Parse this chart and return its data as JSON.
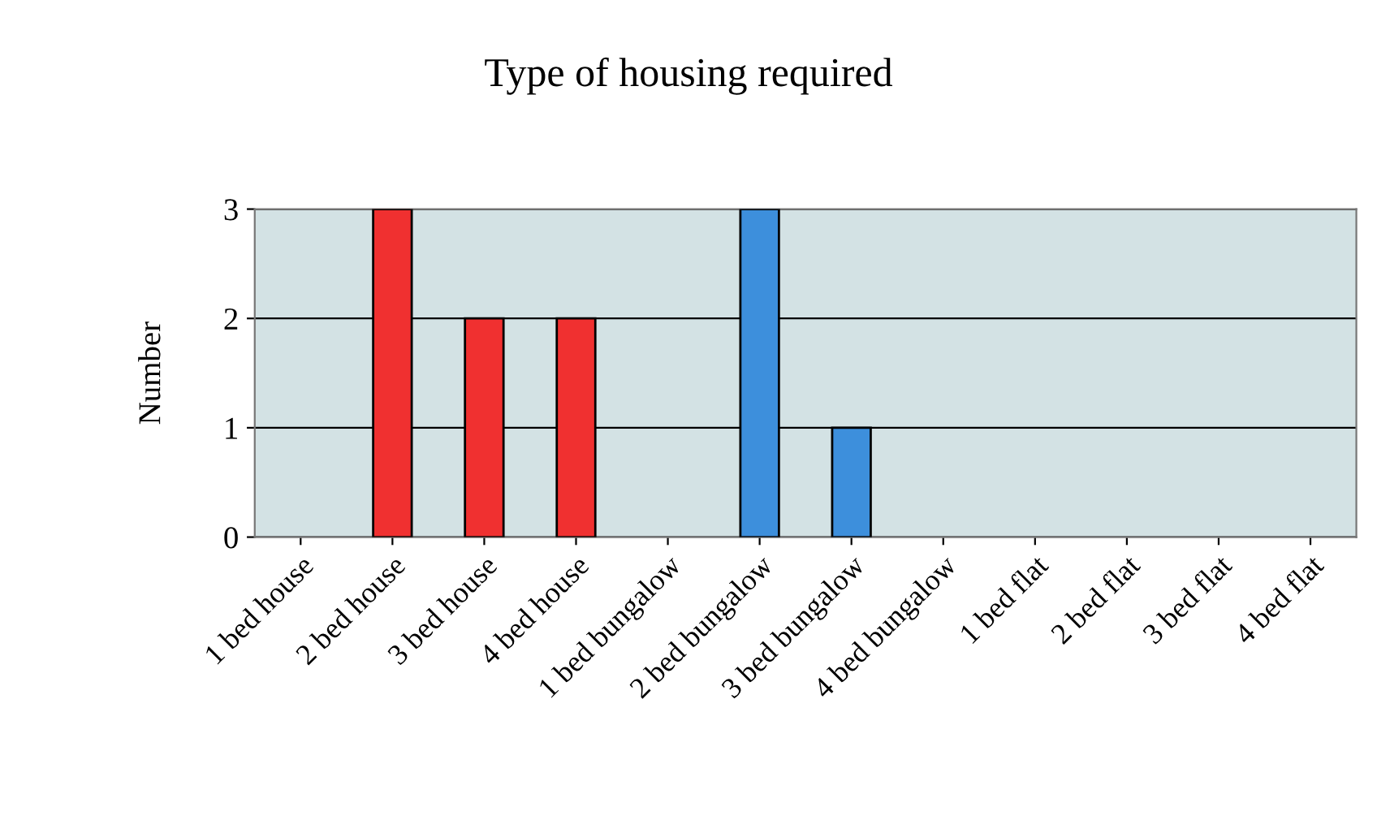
{
  "chart_data": {
    "type": "bar",
    "title": "Type of housing required",
    "ylabel": "Number",
    "categories": [
      "1 bed house",
      "2 bed house",
      "3 bed house",
      "4 bed house",
      "1 bed bungalow",
      "2 bed bungalow",
      "3 bed bungalow",
      "4 bed bungalow",
      "1 bed flat",
      "2 bed flat",
      "3 bed flat",
      "4 bed flat"
    ],
    "values": [
      0,
      3,
      2,
      2,
      0,
      3,
      1,
      0,
      0,
      0,
      0,
      0
    ],
    "colors": [
      "#f03030",
      "#f03030",
      "#f03030",
      "#f03030",
      "#3d8fdc",
      "#3d8fdc",
      "#3d8fdc",
      "#3d8fdc",
      "#3d8fdc",
      "#3d8fdc",
      "#3d8fdc",
      "#3d8fdc"
    ],
    "ylim": [
      0,
      3
    ],
    "yticks": [
      0,
      1,
      2,
      3
    ],
    "grid": "y"
  }
}
